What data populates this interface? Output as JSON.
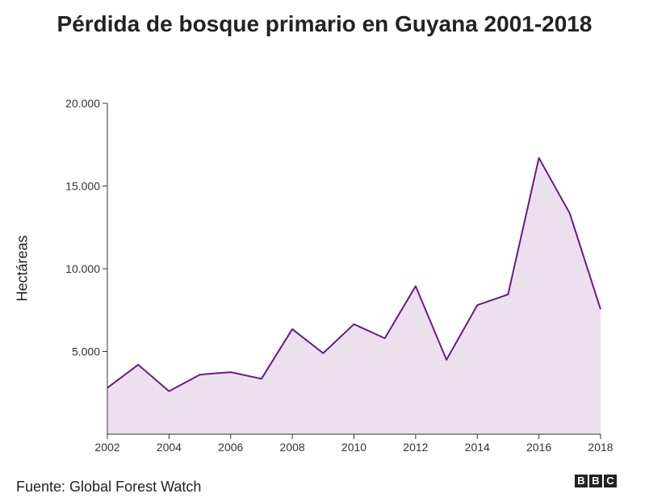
{
  "chart_data": {
    "type": "area",
    "title": "Pérdida de bosque primario en Guyana 2001-2018",
    "ylabel": "Hectáreas",
    "xlabel": "",
    "x": [
      2002,
      2003,
      2004,
      2005,
      2006,
      2007,
      2008,
      2009,
      2010,
      2011,
      2012,
      2013,
      2014,
      2015,
      2016,
      2017,
      2018
    ],
    "values": [
      2800,
      4200,
      2600,
      3600,
      3750,
      3350,
      6350,
      4900,
      6650,
      5800,
      8950,
      4500,
      7800,
      8450,
      16700,
      13350,
      7550
    ],
    "xlim": [
      2002,
      2018
    ],
    "ylim": [
      0,
      20000
    ],
    "yticks": [
      5000,
      10000,
      15000,
      20000
    ],
    "ytick_labels": [
      "5.000",
      "10.000",
      "15.000",
      "20.000"
    ],
    "xticks": [
      2002,
      2004,
      2006,
      2008,
      2010,
      2012,
      2014,
      2016,
      2018
    ],
    "xtick_labels": [
      "2002",
      "2004",
      "2006",
      "2008",
      "2010",
      "2012",
      "2014",
      "2016",
      "2018"
    ],
    "line_color": "#6a1b82",
    "fill_color": "#ece0ef",
    "grid": false
  },
  "source": "Fuente: Global Forest Watch",
  "logo": [
    "B",
    "B",
    "C"
  ]
}
